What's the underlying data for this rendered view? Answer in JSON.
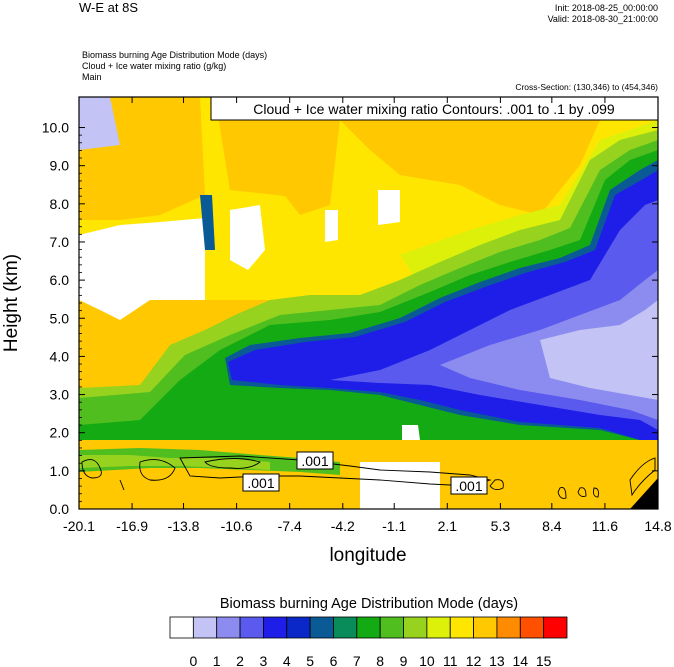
{
  "header": {
    "title": "W-E at 8S",
    "init": "Init: 2018-08-25_00:00:00",
    "valid": "Valid: 2018-08-30_21:00:00",
    "field1": "Biomass burning Age Distribution Mode   (days)",
    "field2": "Cloud + Ice water mixing ratio   (g/kg)",
    "field3": "Main",
    "cross_section": "Cross-Section: (130,346) to (454,346)"
  },
  "chart_data": {
    "type": "heatmap",
    "xlabel": "longitude",
    "ylabel": "Height (km)",
    "x_ticks": [
      "-20.1",
      "-16.9",
      "-13.8",
      "-10.6",
      "-7.4",
      "-4.2",
      "-1.1",
      "2.1",
      "5.3",
      "8.4",
      "11.6",
      "14.8"
    ],
    "y_ticks": [
      "0.0",
      "1.0",
      "2.0",
      "3.0",
      "4.0",
      "5.0",
      "6.0",
      "7.0",
      "8.0",
      "9.0",
      "10.0"
    ],
    "ylim": [
      0,
      10.8
    ],
    "xlim": [
      -20.1,
      14.8
    ],
    "contour_annotation": "Cloud + Ice water mixing ratio Contours: .001 to .1 by .099",
    "contour_labels": [
      ".001",
      ".001",
      ".001"
    ],
    "colorbar": {
      "title": "Biomass burning Age Distribution Mode  (days)",
      "labels": [
        "0",
        "1",
        "2",
        "3",
        "4",
        "5",
        "6",
        "7",
        "8",
        "9",
        "10",
        "11",
        "12",
        "13",
        "14",
        "15"
      ],
      "colors": [
        "#ffffff",
        "#c3c3f5",
        "#8c8cf0",
        "#5a5aee",
        "#1e1ee8",
        "#0a28c8",
        "#0a5a96",
        "#0a8c5a",
        "#14aa14",
        "#50be1e",
        "#96d21e",
        "#dcf00a",
        "#ffe600",
        "#ffc800",
        "#ff8c00",
        "#ff5000",
        "#ff0000"
      ]
    }
  }
}
